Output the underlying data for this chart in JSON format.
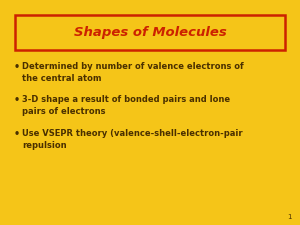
{
  "background_color": "#F5C518",
  "title": "Shapes of Molecules",
  "title_color": "#CC2200",
  "title_box_edge_color": "#CC2200",
  "title_fontsize": 9.5,
  "bullet_color": "#4A3000",
  "bullet_fontsize": 6.0,
  "bullets": [
    "Determined by number of valence electrons of\nthe central atom",
    "3-D shape a result of bonded pairs and lone\npairs of electrons",
    "Use VSEPR theory (valence-shell-electron-pair\nrepulsion"
  ],
  "page_number": "1",
  "page_number_color": "#4A3000",
  "page_number_fontsize": 5
}
